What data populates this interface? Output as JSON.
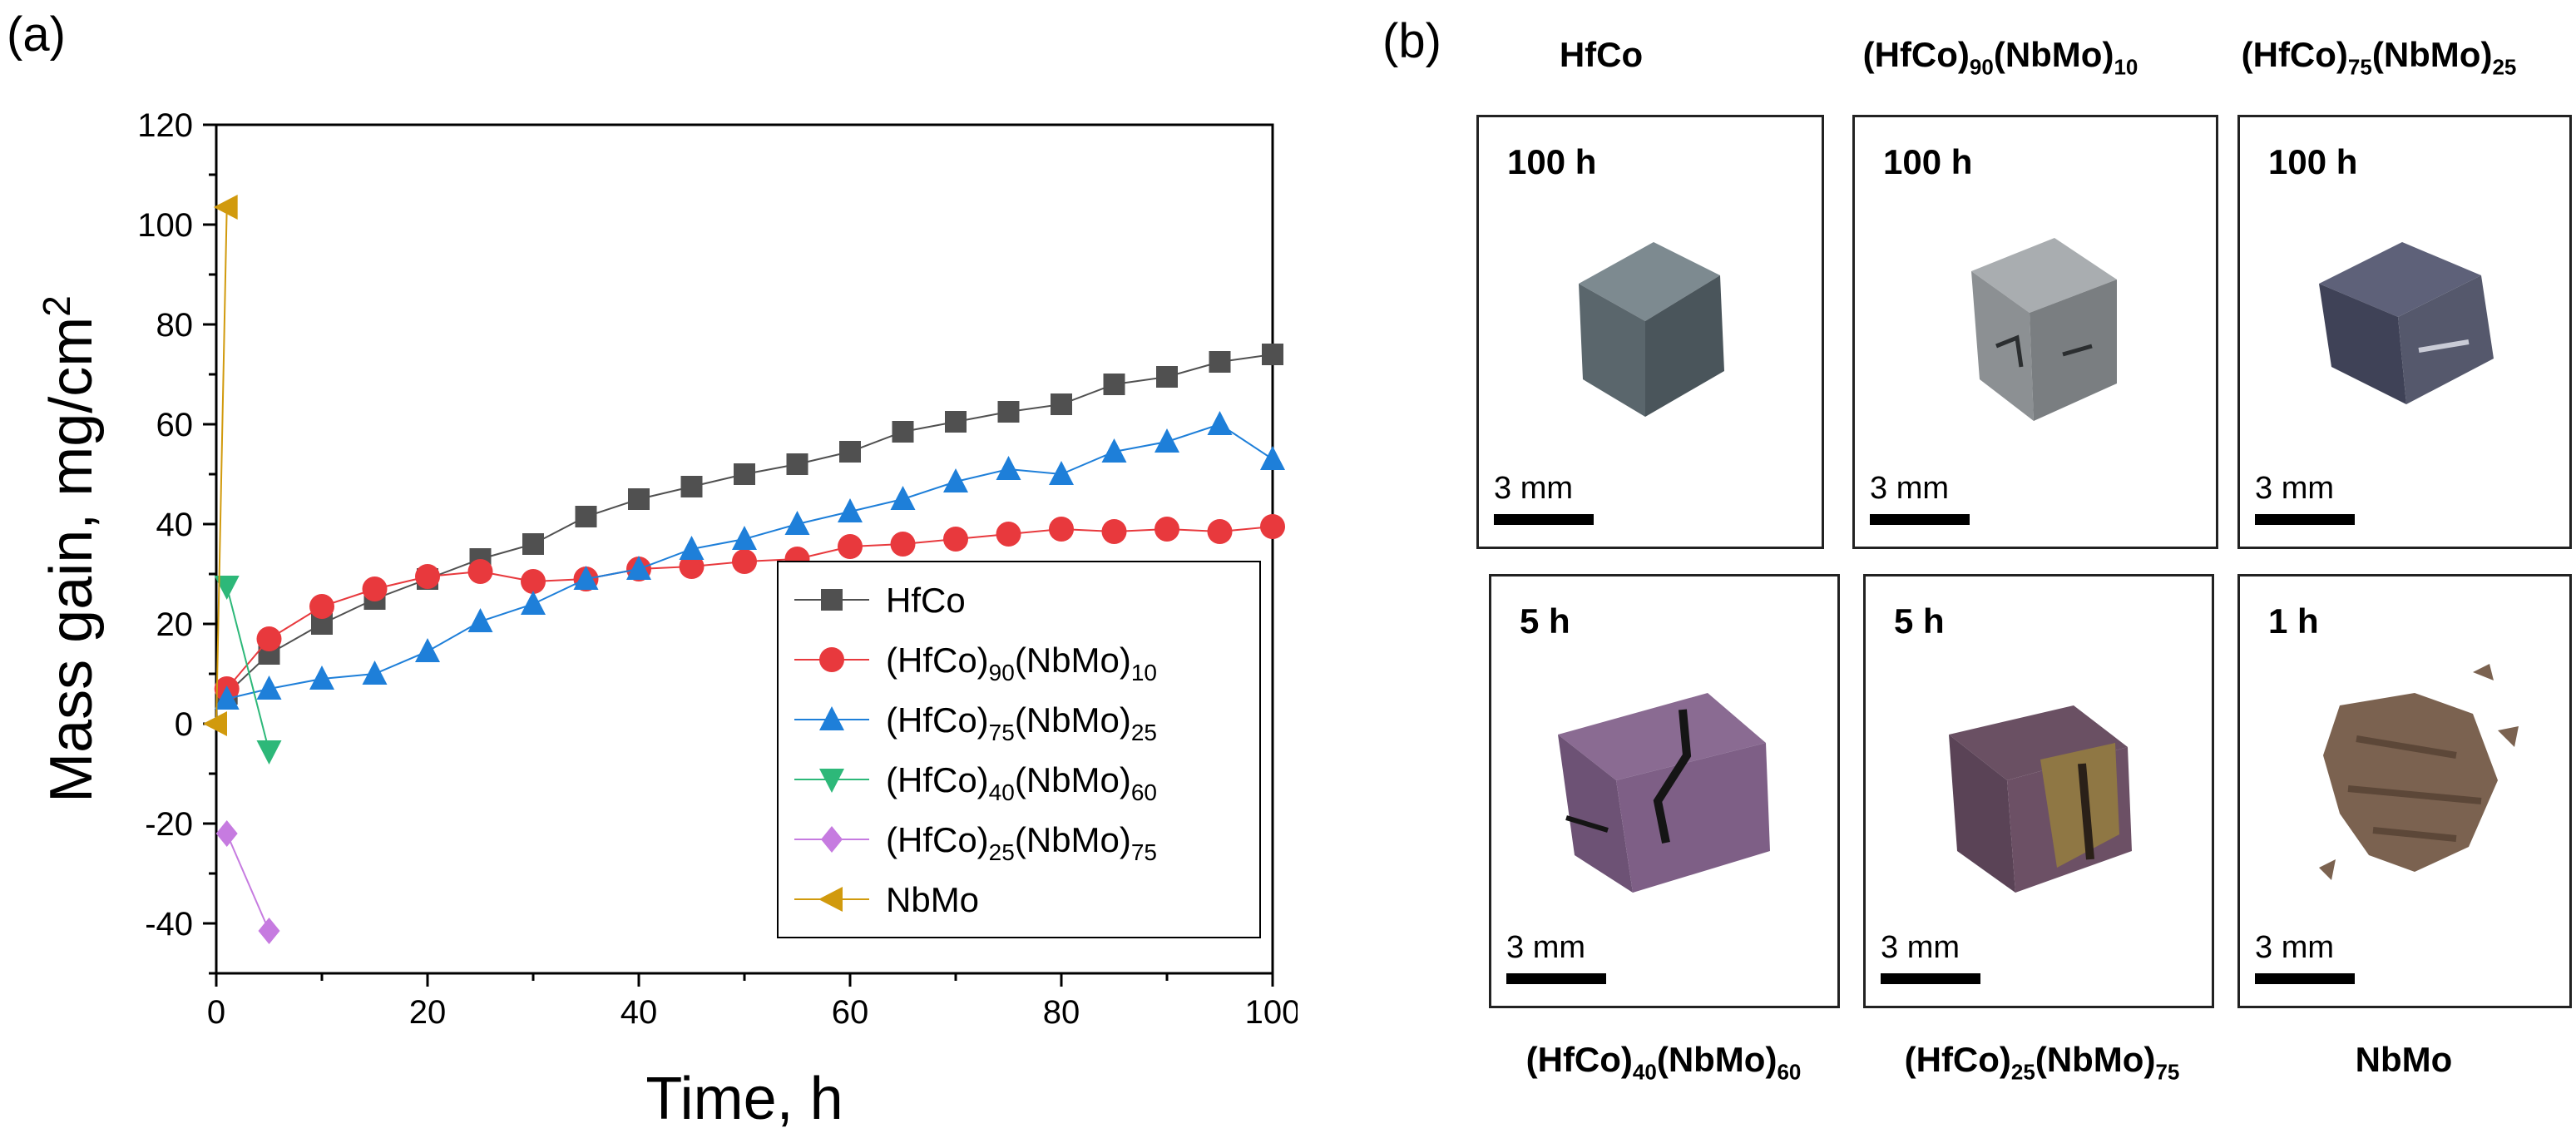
{
  "panel_a_label": "(a)",
  "panel_b_label": "(b)",
  "chart_data": {
    "type": "line",
    "title": "",
    "xlabel": "Time, h",
    "ylabel": "Mass gain, mg/cm",
    "ylabel_sup": "2",
    "xlim": [
      0,
      100
    ],
    "ylim": [
      -50,
      120
    ],
    "xticks": [
      0,
      20,
      40,
      60,
      80,
      100
    ],
    "yticks": [
      -40,
      -20,
      0,
      20,
      40,
      60,
      80,
      100,
      120
    ],
    "grid": false,
    "legend_position": "bottom-right",
    "series": [
      {
        "name": "HfCo",
        "base": "HfCo",
        "sub1": "",
        "mid": "",
        "sub2": "",
        "color": "#505050",
        "marker": "square",
        "x": [
          1,
          5,
          10,
          15,
          20,
          25,
          30,
          35,
          40,
          45,
          50,
          55,
          60,
          65,
          70,
          75,
          80,
          85,
          90,
          95,
          100
        ],
        "y": [
          6,
          14,
          20,
          25,
          29,
          33,
          36,
          41.5,
          45,
          47.5,
          50,
          52,
          54.5,
          58.5,
          60.5,
          62.5,
          64,
          68,
          69.5,
          72.5,
          74
        ]
      },
      {
        "name": "(HfCo)90(NbMo)10",
        "base": "(HfCo)",
        "sub1": "90",
        "mid": "(NbMo)",
        "sub2": "10",
        "color": "#e8393d",
        "marker": "circle",
        "x": [
          1,
          5,
          10,
          15,
          20,
          25,
          30,
          35,
          40,
          45,
          50,
          55,
          60,
          65,
          70,
          75,
          80,
          85,
          90,
          95,
          100
        ],
        "y": [
          7,
          17,
          23.5,
          27,
          29.5,
          30.5,
          28.5,
          29,
          31,
          31.5,
          32.5,
          33,
          35.5,
          36,
          37,
          38,
          39,
          38.5,
          39,
          38.5,
          39.5
        ]
      },
      {
        "name": "(HfCo)75(NbMo)25",
        "base": "(HfCo)",
        "sub1": "75",
        "mid": "(NbMo)",
        "sub2": "25",
        "color": "#1e7fd9",
        "marker": "triangle-up",
        "x": [
          1,
          5,
          10,
          15,
          20,
          25,
          30,
          35,
          40,
          45,
          50,
          55,
          60,
          65,
          70,
          75,
          80,
          85,
          90,
          95,
          100
        ],
        "y": [
          5,
          7,
          9,
          10,
          14.5,
          20.5,
          24,
          29,
          31,
          35,
          37,
          40,
          42.5,
          45,
          48.5,
          51,
          50,
          54.5,
          56.5,
          60,
          53
        ]
      },
      {
        "name": "(HfCo)40(NbMo)60",
        "base": "(HfCo)",
        "sub1": "40",
        "mid": "(NbMo)",
        "sub2": "60",
        "color": "#2db879",
        "marker": "triangle-down",
        "x": [
          1,
          5
        ],
        "y": [
          27.5,
          -5.5
        ]
      },
      {
        "name": "(HfCo)25(NbMo)75",
        "base": "(HfCo)",
        "sub1": "25",
        "mid": "(NbMo)",
        "sub2": "75",
        "color": "#c67be0",
        "marker": "diamond",
        "x": [
          1,
          5
        ],
        "y": [
          -22,
          -41.5
        ]
      },
      {
        "name": "NbMo",
        "base": "NbMo",
        "sub1": "",
        "mid": "",
        "sub2": "",
        "color": "#d19a0d",
        "marker": "triangle-left",
        "x": [
          0,
          1
        ],
        "y": [
          0,
          103.5
        ]
      }
    ]
  },
  "photos": [
    {
      "top_label": {
        "base": "HfCo",
        "sub1": "",
        "mid": "",
        "sub2": ""
      },
      "duration": "100 h",
      "scale": "3 mm",
      "sample_color": "#5c6a70"
    },
    {
      "top_label": {
        "base": "(HfCo)",
        "sub1": "90",
        "mid": "(NbMo)",
        "sub2": "10"
      },
      "duration": "100 h",
      "scale": "3 mm",
      "sample_color": "#8e9295"
    },
    {
      "top_label": {
        "base": "(HfCo)",
        "sub1": "75",
        "mid": "(NbMo)",
        "sub2": "25"
      },
      "duration": "100 h",
      "scale": "3 mm",
      "sample_color": "#4b4f66"
    },
    {
      "bottom_label": {
        "base": "(HfCo)",
        "sub1": "40",
        "mid": "(NbMo)",
        "sub2": "60"
      },
      "duration": "5 h",
      "scale": "3 mm",
      "sample_color": "#7e5f86"
    },
    {
      "bottom_label": {
        "base": "(HfCo)",
        "sub1": "25",
        "mid": "(NbMo)",
        "sub2": "75"
      },
      "duration": "5 h",
      "scale": "3 mm",
      "sample_color": "#6c5065"
    },
    {
      "bottom_label": {
        "base": "NbMo",
        "sub1": "",
        "mid": "",
        "sub2": ""
      },
      "duration": "1 h",
      "scale": "3 mm",
      "sample_color": "#7b6250"
    }
  ]
}
